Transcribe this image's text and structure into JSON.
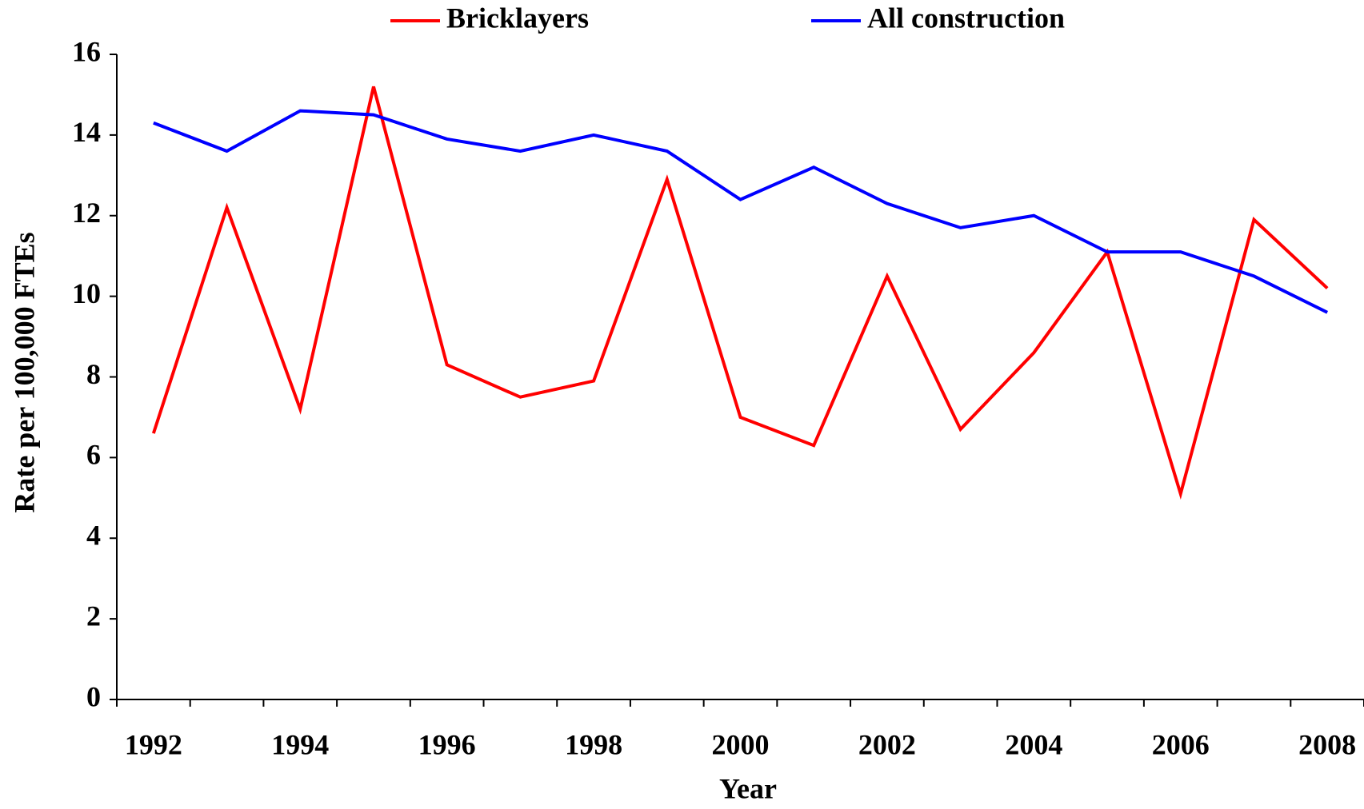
{
  "chart_data": {
    "type": "line",
    "x_label": "Year",
    "y_label": "Rate per 100,000 FTEs",
    "categories": [
      "1992",
      null,
      "1994",
      null,
      "1996",
      null,
      "1998",
      null,
      "2000",
      null,
      "2002",
      null,
      "2004",
      null,
      "2006",
      null,
      "2008"
    ],
    "series": [
      {
        "name": "Bricklayers",
        "color": "#ff0000",
        "values": [
          6.6,
          12.2,
          7.2,
          15.2,
          8.3,
          7.5,
          7.9,
          12.9,
          7.0,
          6.3,
          10.5,
          6.7,
          8.6,
          11.1,
          5.1,
          11.9,
          10.2
        ]
      },
      {
        "name": "All construction",
        "color": "#0000ff",
        "values": [
          14.3,
          13.6,
          14.6,
          14.5,
          13.9,
          13.6,
          14.0,
          13.6,
          12.4,
          13.2,
          12.3,
          11.7,
          12.0,
          11.1,
          11.1,
          10.5,
          9.6
        ]
      }
    ],
    "ylim": [
      0,
      16
    ],
    "yticks": [
      0,
      2,
      4,
      6,
      8,
      10,
      12,
      14,
      16
    ],
    "grid": false,
    "legend": "top"
  }
}
